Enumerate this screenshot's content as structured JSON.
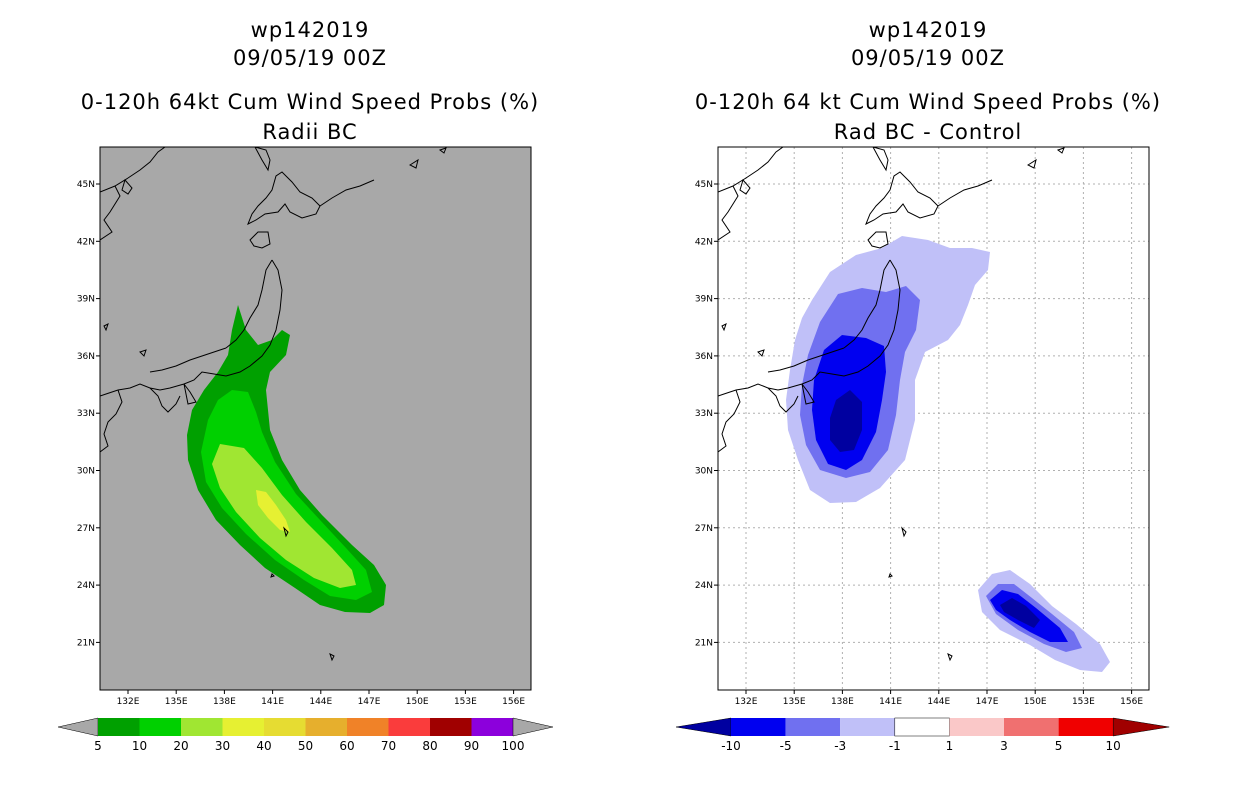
{
  "left_panel": {
    "title_line1": "wp142019",
    "title_line2": "09/05/19 00Z",
    "title_line3": "0-120h 64kt Cum Wind Speed Probs (%)",
    "title_line4": "Radii BC",
    "x_ticks": [
      "132E",
      "135E",
      "138E",
      "141E",
      "144E",
      "147E",
      "150E",
      "153E",
      "156E"
    ],
    "y_ticks": [
      "45N",
      "42N",
      "39N",
      "36N",
      "33N",
      "30N",
      "27N",
      "24N",
      "21N"
    ],
    "background_color": "#a8a8a8",
    "colorbar": {
      "labels": [
        "5",
        "10",
        "20",
        "30",
        "40",
        "50",
        "60",
        "70",
        "80",
        "90",
        "100"
      ],
      "colors": [
        "#00a000",
        "#00d000",
        "#a0e632",
        "#e6f032",
        "#e6dc32",
        "#e6af2d",
        "#f08228",
        "#fa3c3c",
        "#a00000",
        "#8c00dc"
      ],
      "end_color": "#a8a8a8"
    }
  },
  "right_panel": {
    "title_line1": "wp142019",
    "title_line2": "09/05/19 00Z",
    "title_line3": "0-120h 64 kt Cum Wind Speed Probs (%)",
    "title_line4": "Rad BC - Control",
    "x_ticks": [
      "132E",
      "135E",
      "138E",
      "141E",
      "144E",
      "147E",
      "150E",
      "153E",
      "156E"
    ],
    "y_ticks": [
      "45N",
      "42N",
      "39N",
      "36N",
      "33N",
      "30N",
      "27N",
      "24N",
      "21N"
    ],
    "colorbar": {
      "labels": [
        "-10",
        "-5",
        "-3",
        "-1",
        "1",
        "3",
        "5",
        "10"
      ],
      "colors": [
        "#0000f0",
        "#7070f0",
        "#c0c0f8",
        "#ffffff",
        "#fac8c8",
        "#f07070",
        "#f00000"
      ],
      "low_end_color": "#0000a0",
      "high_end_color": "#a00000"
    }
  }
}
